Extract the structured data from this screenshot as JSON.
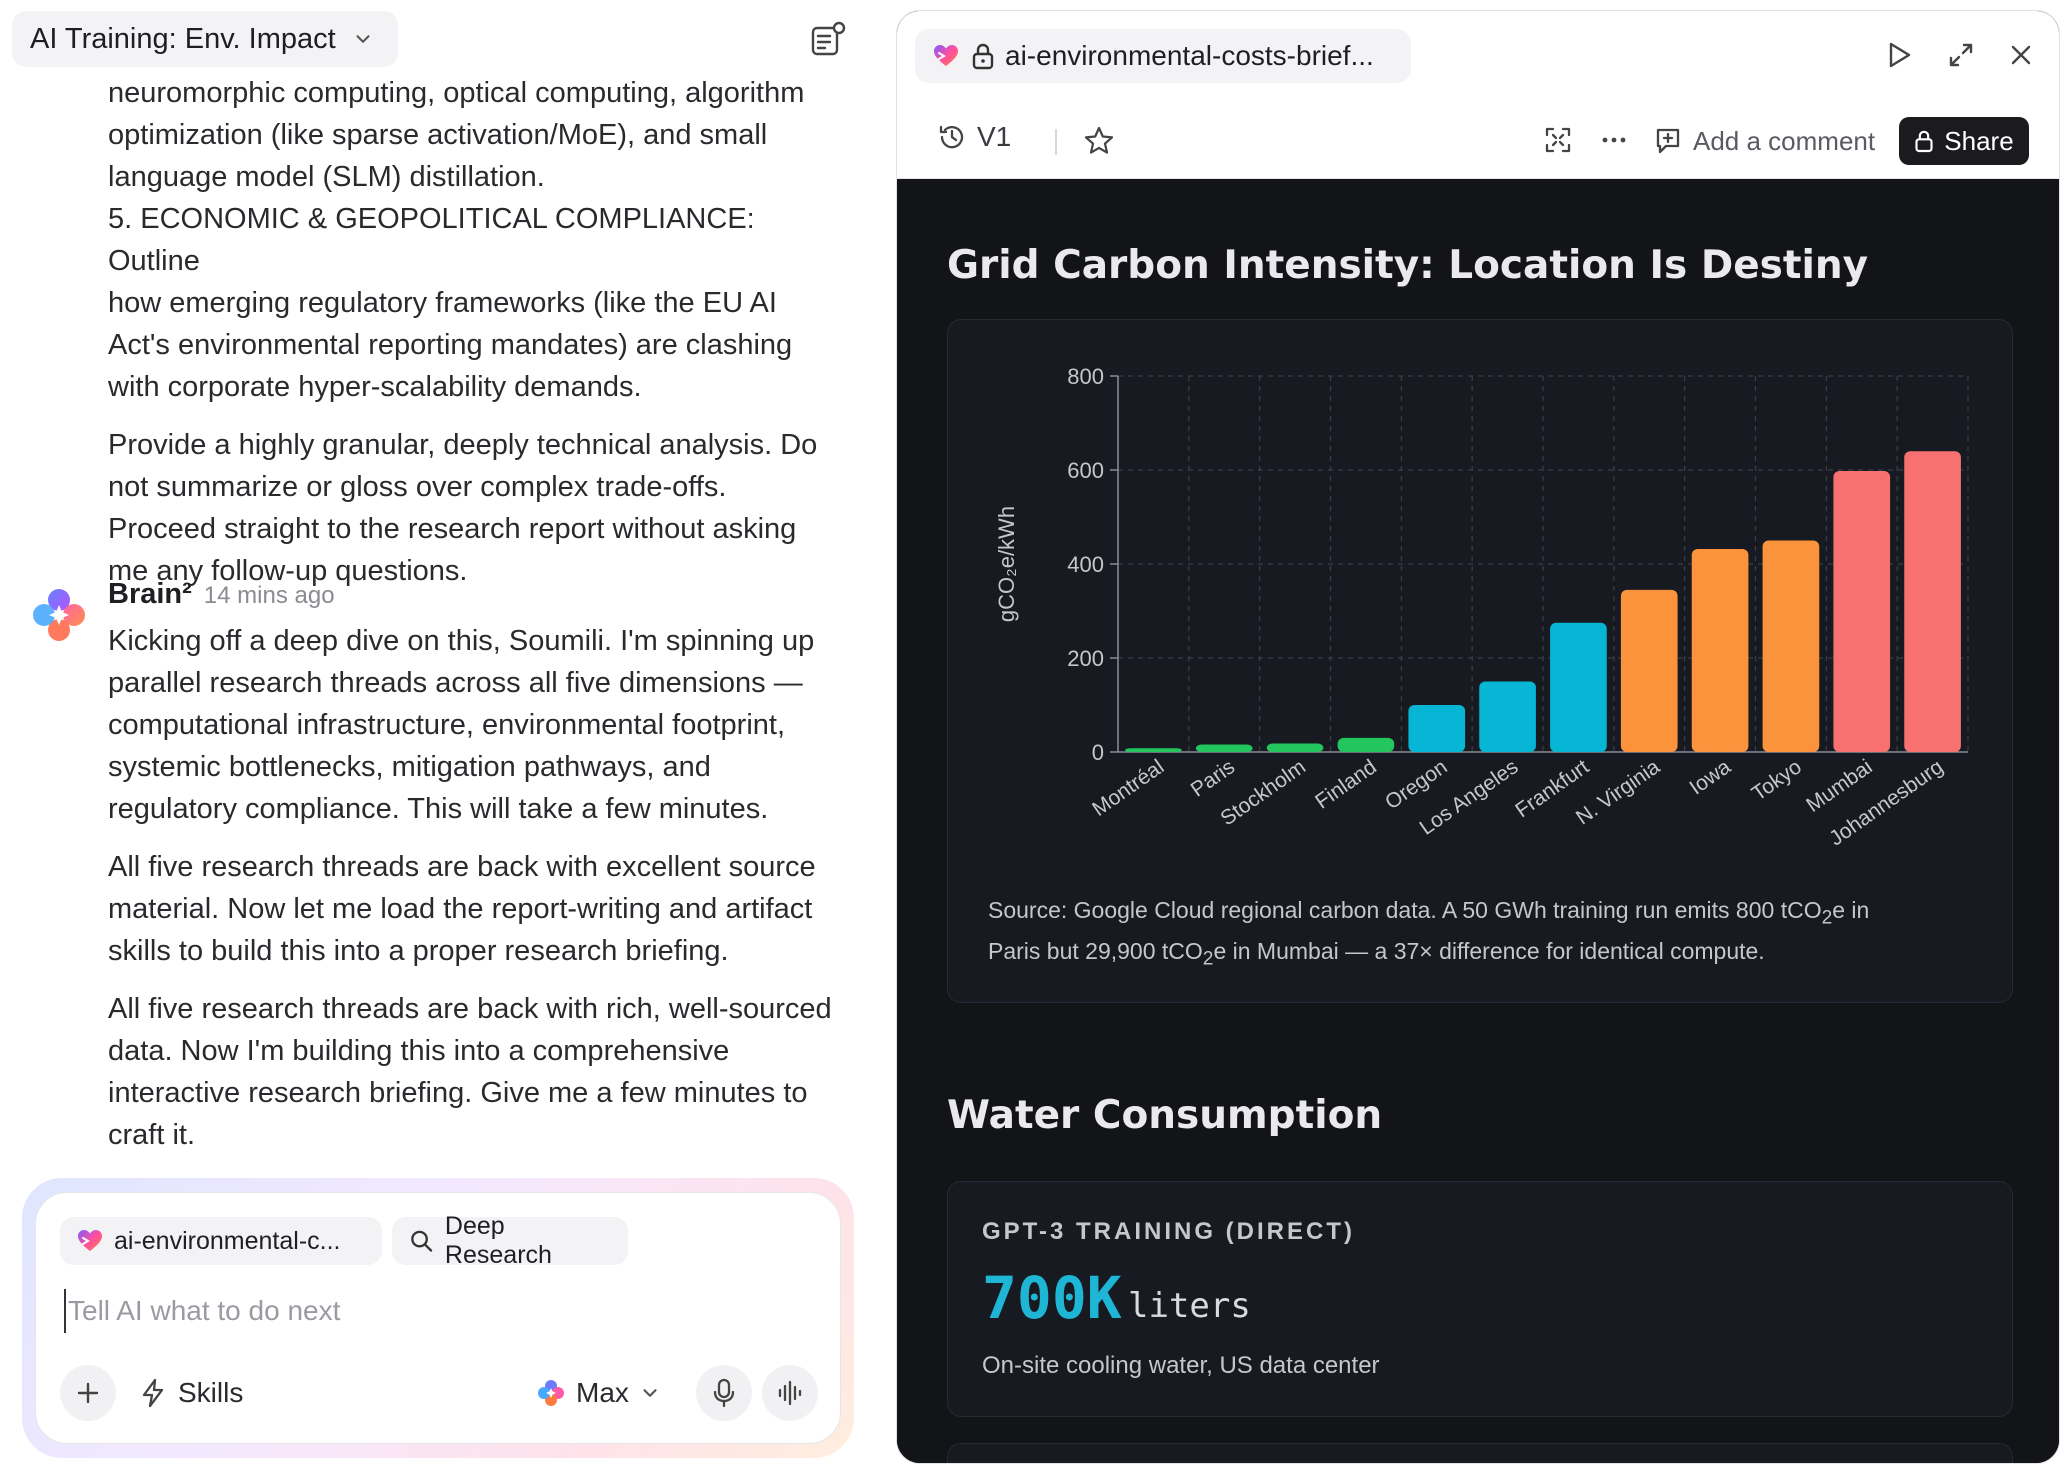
{
  "chat": {
    "title": "AI Training: Env. Impact",
    "prompt_lines": [
      "neuromorphic computing, optical computing, algorithm",
      "optimization (like sparse activation/MoE), and small",
      "language model (SLM) distillation.",
      "5. ECONOMIC & GEOPOLITICAL COMPLIANCE: Outline",
      "how emerging regulatory frameworks (like the EU AI",
      "Act's environmental reporting mandates) are clashing",
      "with corporate hyper-scalability demands."
    ],
    "prompt_para2": [
      "Provide a highly granular, deeply technical analysis. Do",
      "not summarize or gloss over complex trade-offs.",
      "Proceed straight to the research report without asking",
      "me any follow-up questions."
    ],
    "assistant_name": "Brain²",
    "assistant_time": "14 mins ago",
    "reply_para1": [
      "Kicking off a deep dive on this, Soumili. I'm spinning up",
      "parallel research threads across all five dimensions —",
      "computational infrastructure, environmental footprint,",
      "systemic bottlenecks, mitigation pathways, and",
      "regulatory compliance. This will take a few minutes."
    ],
    "reply_para2": [
      "All five research threads are back with excellent source",
      "material. Now let me load the report-writing and artifact",
      "skills to build this into a proper research briefing."
    ],
    "reply_para3": [
      "All five research threads are back with rich, well-sourced",
      "data. Now I'm building this into a comprehensive",
      "interactive research briefing. Give me a few minutes to",
      "craft it."
    ]
  },
  "composer": {
    "file_chip": "ai-environmental-c...",
    "research_chip": "Deep Research",
    "placeholder": "Tell AI what to do next",
    "skills_label": "Skills",
    "model_label": "Max"
  },
  "artifact": {
    "file_name": "ai-environmental-costs-brief...",
    "version_label": "V1",
    "comment_label": "Add a comment",
    "share_label": "Share",
    "section1_title": "Grid Carbon Intensity: Location Is Destiny",
    "source_line1_a": "Source: Google Cloud regional carbon data. A 50 GWh training run emits 800 tCO",
    "source_line1_b": "e in",
    "source_line2_a": "Paris but 29,900 tCO",
    "source_line2_b": "e in Mumbai — a 37× difference for identical compute.",
    "subscript_2": "2",
    "section2_title": "Water Consumption",
    "water_label": "GPT-3 TRAINING (DIRECT)",
    "water_value": "700K",
    "water_unit": "liters",
    "water_desc": "On-site cooling water, US data center"
  },
  "colors": {
    "green": "#22c55e",
    "cyan": "#06b6d4",
    "orange": "#fb923c",
    "red": "#f87171",
    "accent": "#1fb6d6"
  },
  "chart_data": {
    "type": "bar",
    "title": "Grid Carbon Intensity: Location Is Destiny",
    "xlabel": "",
    "ylabel": "gCO₂e/kWh",
    "ylim": [
      0,
      800
    ],
    "yticks": [
      0,
      200,
      400,
      600,
      800
    ],
    "grid": true,
    "categories": [
      "Montréal",
      "Paris",
      "Stockholm",
      "Finland",
      "Oregon",
      "Los Angeles",
      "Frankfurt",
      "N. Virginia",
      "Iowa",
      "Tokyo",
      "Mumbai",
      "Johannesburg"
    ],
    "values": [
      8,
      16,
      18,
      30,
      100,
      150,
      275,
      345,
      432,
      450,
      598,
      640
    ],
    "bar_colors": [
      "#22c55e",
      "#22c55e",
      "#22c55e",
      "#22c55e",
      "#06b6d4",
      "#06b6d4",
      "#06b6d4",
      "#fb923c",
      "#fb923c",
      "#fb923c",
      "#f87171",
      "#f87171"
    ]
  }
}
